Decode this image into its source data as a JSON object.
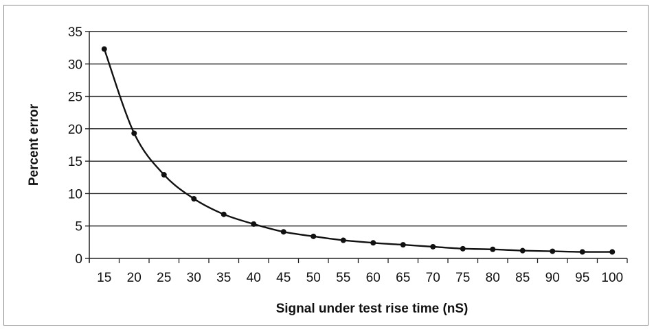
{
  "chart_data": {
    "type": "line",
    "title": "",
    "xlabel": "Signal under test rise time (nS)",
    "ylabel": "Percent error",
    "xlim": [
      10,
      100
    ],
    "ylim": [
      0,
      35
    ],
    "x_ticks": [
      15,
      20,
      25,
      30,
      35,
      40,
      45,
      50,
      55,
      60,
      65,
      70,
      75,
      80,
      85,
      90,
      95,
      100
    ],
    "x_minor_ticks": [
      10,
      15,
      20,
      25,
      30,
      35,
      40,
      45,
      50,
      55,
      60,
      65,
      70,
      75,
      80,
      85,
      90,
      95,
      100
    ],
    "y_ticks": [
      0,
      5,
      10,
      15,
      20,
      25,
      30,
      35
    ],
    "grid": "horizontal",
    "legend": "none",
    "series": [
      {
        "x": [
          12.5,
          17.5,
          22.5,
          27.5,
          32.5,
          37.5,
          42.5,
          47.5,
          52.5,
          57.5,
          62.5,
          67.5,
          72.5,
          77.5,
          82.5,
          87.5,
          92.5,
          97.5
        ],
        "values": [
          32.3,
          19.3,
          12.9,
          9.2,
          6.8,
          5.3,
          4.1,
          3.4,
          2.8,
          2.4,
          2.1,
          1.8,
          1.5,
          1.4,
          1.2,
          1.1,
          1.0,
          1.0
        ]
      }
    ],
    "colors": {
      "line": "#111111",
      "grid": "#222222",
      "axis": "#222222"
    }
  }
}
